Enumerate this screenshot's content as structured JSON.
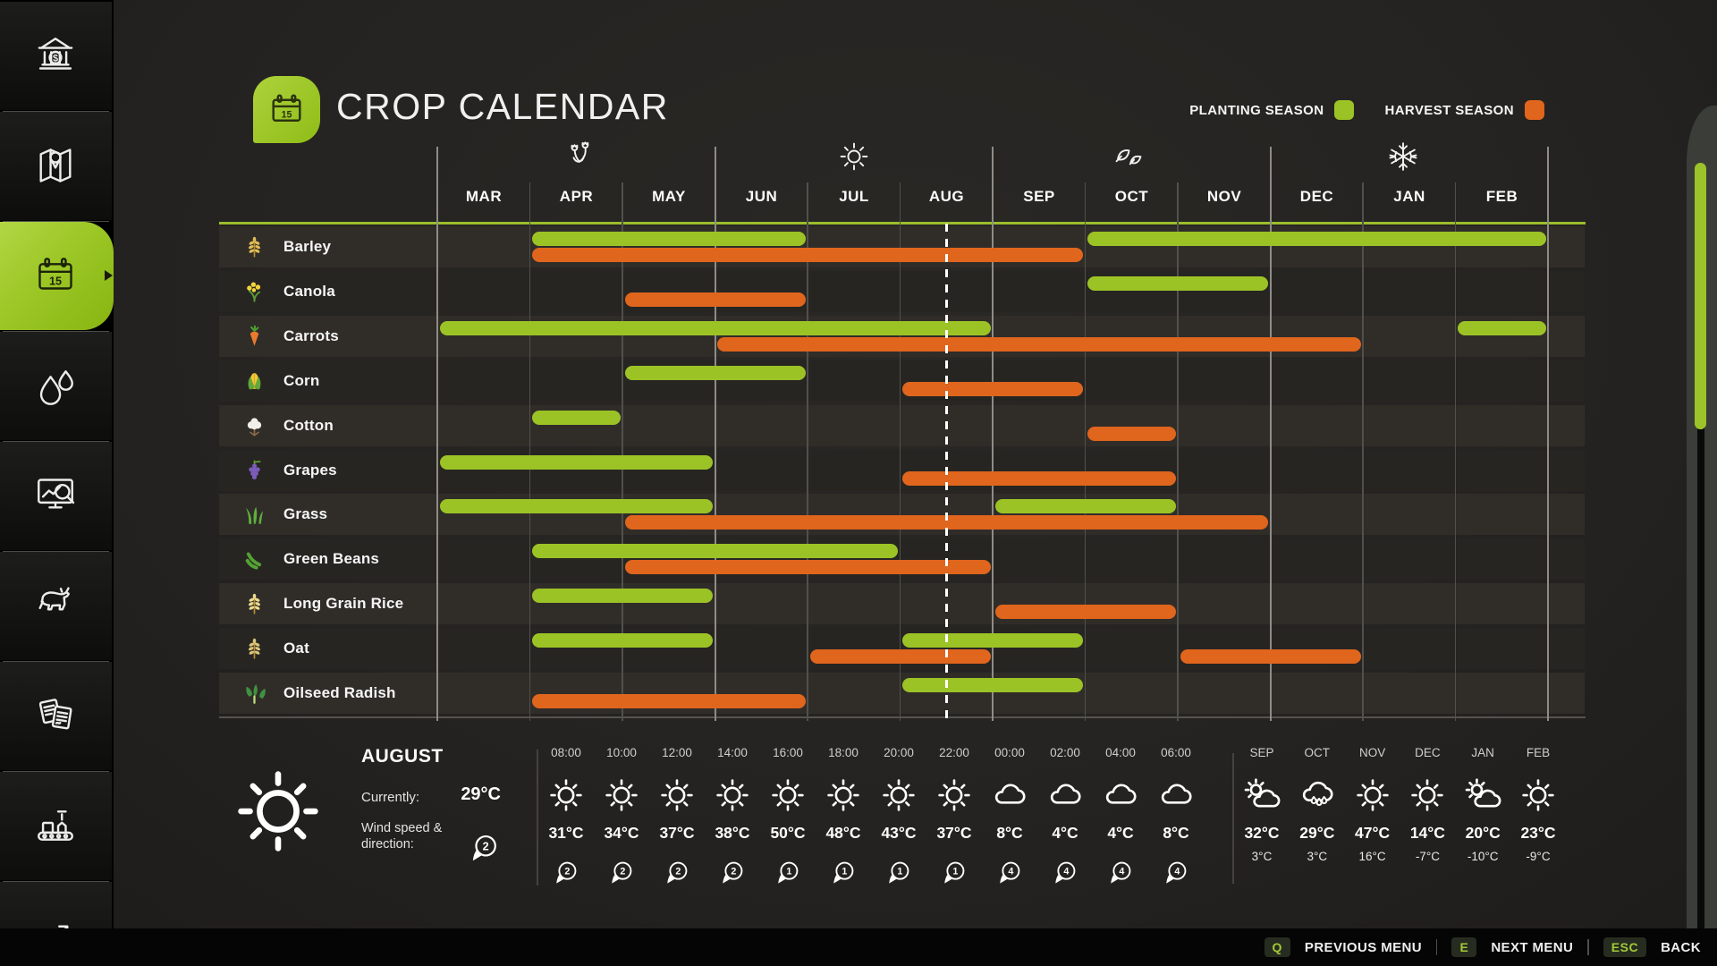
{
  "header": {
    "title": "CROP CALENDAR",
    "logo_icon": "calendar-15-icon",
    "logo_day": "15"
  },
  "sidebar": {
    "items": [
      {
        "id": "finances",
        "icon": "bank-icon",
        "active": false
      },
      {
        "id": "map",
        "icon": "map-icon",
        "active": false
      },
      {
        "id": "crop-calendar",
        "icon": "calendar-15-icon",
        "active": true
      },
      {
        "id": "precipitation",
        "icon": "water-drops-icon",
        "active": false
      },
      {
        "id": "prices",
        "icon": "prices-monitor-icon",
        "active": false
      },
      {
        "id": "animals",
        "icon": "cow-icon",
        "active": false
      },
      {
        "id": "contracts",
        "icon": "contracts-icon",
        "active": false
      },
      {
        "id": "production",
        "icon": "production-icon",
        "active": false
      },
      {
        "id": "statistics",
        "icon": "stats-arrow-icon",
        "active": false
      }
    ]
  },
  "legend": {
    "planting_label": "PLANTING SEASON",
    "planting_color": "#9cc326",
    "harvest_label": "HARVEST SEASON",
    "harvest_color": "#e0651d"
  },
  "calendar": {
    "months": [
      "MAR",
      "APR",
      "MAY",
      "JUN",
      "JUL",
      "AUG",
      "SEP",
      "OCT",
      "NOV",
      "DEC",
      "JAN",
      "FEB"
    ],
    "season_icons": [
      "spring-flowers-icon",
      "summer-sun-icon",
      "autumn-leaves-icon",
      "winter-snowflake-icon"
    ],
    "current_date_marker": {
      "month": "AUG",
      "position": "middle"
    },
    "crops": [
      {
        "name": "Barley",
        "icon": "barley-icon",
        "planting": [
          [
            "APR",
            "JUN"
          ],
          [
            "OCT",
            "FEB"
          ]
        ],
        "harvest": [
          [
            "APR",
            "SEP"
          ]
        ]
      },
      {
        "name": "Canola",
        "icon": "canola-icon",
        "planting": [
          [
            "OCT",
            "NOV"
          ]
        ],
        "harvest": [
          [
            "MAY",
            "JUN"
          ]
        ]
      },
      {
        "name": "Carrots",
        "icon": "carrot-icon",
        "planting": [
          [
            "MAR",
            "AUG"
          ],
          [
            "FEB",
            "FEB"
          ]
        ],
        "harvest": [
          [
            "JUN",
            "DEC"
          ]
        ]
      },
      {
        "name": "Corn",
        "icon": "corn-icon",
        "planting": [
          [
            "MAY",
            "JUN"
          ]
        ],
        "harvest": [
          [
            "AUG",
            "SEP"
          ]
        ]
      },
      {
        "name": "Cotton",
        "icon": "cotton-icon",
        "planting": [
          [
            "APR",
            "APR"
          ]
        ],
        "harvest": [
          [
            "OCT",
            "OCT"
          ]
        ]
      },
      {
        "name": "Grapes",
        "icon": "grapes-icon",
        "planting": [
          [
            "MAR",
            "MAY"
          ]
        ],
        "harvest": [
          [
            "AUG",
            "OCT"
          ]
        ]
      },
      {
        "name": "Grass",
        "icon": "grass-icon",
        "planting": [
          [
            "MAR",
            "MAY"
          ],
          [
            "SEP",
            "OCT"
          ]
        ],
        "harvest": [
          [
            "MAY",
            "NOV"
          ]
        ]
      },
      {
        "name": "Green Beans",
        "icon": "green-beans-icon",
        "planting": [
          [
            "APR",
            "JUL"
          ]
        ],
        "harvest": [
          [
            "MAY",
            "AUG"
          ]
        ]
      },
      {
        "name": "Long Grain Rice",
        "icon": "rice-icon",
        "planting": [
          [
            "APR",
            "MAY"
          ]
        ],
        "harvest": [
          [
            "SEP",
            "OCT"
          ]
        ]
      },
      {
        "name": "Oat",
        "icon": "oat-icon",
        "planting": [
          [
            "APR",
            "MAY"
          ],
          [
            "AUG",
            "SEP"
          ]
        ],
        "harvest": [
          [
            "JUL",
            "AUG"
          ],
          [
            "NOV",
            "DEC"
          ]
        ]
      },
      {
        "name": "Oilseed Radish",
        "icon": "radish-icon",
        "planting": [
          [
            "AUG",
            "SEP"
          ]
        ],
        "harvest": [
          [
            "APR",
            "JUN"
          ]
        ]
      }
    ]
  },
  "weather": {
    "current": {
      "month": "AUGUST",
      "condition_icon": "sun-icon",
      "currently_label": "Currently:",
      "temperature": "29°C",
      "wind_label_line1": "Wind speed &",
      "wind_label_line2": "direction:",
      "wind_speed": "2"
    },
    "hourly": [
      {
        "time": "08:00",
        "icon": "sun-icon",
        "temp": "31°C",
        "wind": "2"
      },
      {
        "time": "10:00",
        "icon": "sun-icon",
        "temp": "34°C",
        "wind": "2"
      },
      {
        "time": "12:00",
        "icon": "sun-icon",
        "temp": "37°C",
        "wind": "2"
      },
      {
        "time": "14:00",
        "icon": "sun-icon",
        "temp": "38°C",
        "wind": "2"
      },
      {
        "time": "16:00",
        "icon": "sun-icon",
        "temp": "50°C",
        "wind": "1"
      },
      {
        "time": "18:00",
        "icon": "sun-icon",
        "temp": "48°C",
        "wind": "1"
      },
      {
        "time": "20:00",
        "icon": "sun-icon",
        "temp": "43°C",
        "wind": "1"
      },
      {
        "time": "22:00",
        "icon": "sun-icon",
        "temp": "37°C",
        "wind": "1"
      },
      {
        "time": "00:00",
        "icon": "cloud-icon",
        "temp": "8°C",
        "wind": "4"
      },
      {
        "time": "02:00",
        "icon": "cloud-icon",
        "temp": "4°C",
        "wind": "4"
      },
      {
        "time": "04:00",
        "icon": "cloud-icon",
        "temp": "4°C",
        "wind": "4"
      },
      {
        "time": "06:00",
        "icon": "cloud-icon",
        "temp": "8°C",
        "wind": "4"
      }
    ],
    "monthly": [
      {
        "month": "SEP",
        "icon": "partly-cloudy-icon",
        "high": "32°C",
        "low": "3°C"
      },
      {
        "month": "OCT",
        "icon": "rain-icon",
        "high": "29°C",
        "low": "3°C"
      },
      {
        "month": "NOV",
        "icon": "sun-icon",
        "high": "47°C",
        "low": "16°C"
      },
      {
        "month": "DEC",
        "icon": "sun-icon",
        "high": "14°C",
        "low": "-7°C"
      },
      {
        "month": "JAN",
        "icon": "partly-cloudy-icon",
        "high": "20°C",
        "low": "-10°C"
      },
      {
        "month": "FEB",
        "icon": "sun-icon",
        "high": "23°C",
        "low": "-9°C"
      }
    ]
  },
  "menu_bar": {
    "items": [
      {
        "key": "Q",
        "label": "PREVIOUS MENU"
      },
      {
        "key": "E",
        "label": "NEXT MENU"
      },
      {
        "key": "ESC",
        "label": "BACK"
      }
    ]
  }
}
